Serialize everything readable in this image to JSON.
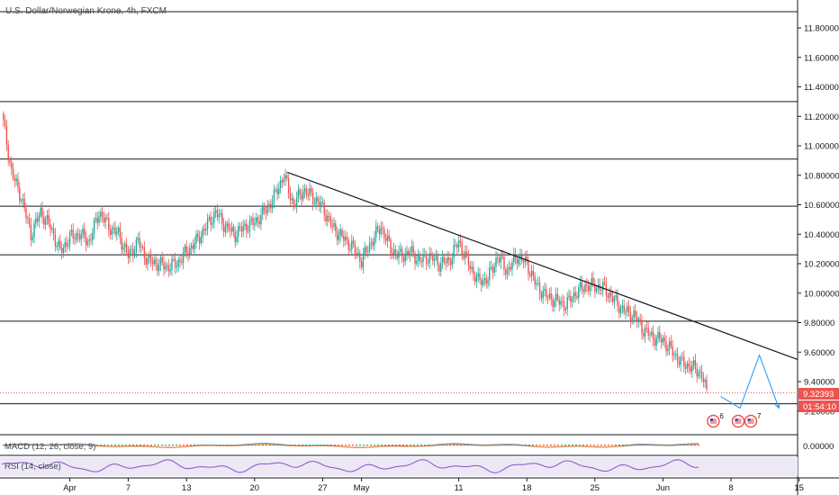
{
  "chart_data": {
    "type": "candlestick",
    "title": "U.S. Dollar/Norwegian Krone, 4h, FXCM",
    "price_axis": {
      "ylim": [
        9.2,
        11.9
      ],
      "ticks": [
        "11.80000",
        "11.60000",
        "11.40000",
        "11.20000",
        "11.00000",
        "10.80000",
        "10.60000",
        "10.40000",
        "10.20000",
        "10.00000",
        "9.80000",
        "9.60000",
        "9.40000",
        "9.20000"
      ]
    },
    "time_axis": {
      "labels": [
        "Apr",
        "7",
        "13",
        "20",
        "27",
        "May",
        "11",
        "18",
        "25",
        "Jun",
        "8",
        "15"
      ]
    },
    "horizontal_levels": [
      11.91,
      11.3,
      10.91,
      10.59,
      10.26,
      9.81,
      9.25
    ],
    "trendline": {
      "from": [
        "Apr 23",
        10.82
      ],
      "to": [
        "Jun 15",
        9.55
      ]
    },
    "last_price": {
      "value": "9.32393",
      "countdown": "01:54:10",
      "price": 9.324
    },
    "close_path": [
      [
        "Mar 25",
        11.22
      ],
      [
        "Mar 26",
        10.82
      ],
      [
        "Mar 27",
        10.65
      ],
      [
        "Mar 28",
        10.4
      ],
      [
        "Mar 29",
        10.55
      ],
      [
        "Mar 30",
        10.45
      ],
      [
        "Mar 31",
        10.28
      ],
      [
        "Apr 1",
        10.38
      ],
      [
        "Apr 2",
        10.4
      ],
      [
        "Apr 3",
        10.35
      ],
      [
        "Apr 4",
        10.55
      ],
      [
        "Apr 5",
        10.45
      ],
      [
        "Apr 6",
        10.4
      ],
      [
        "Apr 7",
        10.25
      ],
      [
        "Apr 8",
        10.35
      ],
      [
        "Apr 9",
        10.22
      ],
      [
        "Apr 10",
        10.2
      ],
      [
        "Apr 11",
        10.18
      ],
      [
        "Apr 12",
        10.2
      ],
      [
        "Apr 13",
        10.28
      ],
      [
        "Apr 14",
        10.35
      ],
      [
        "Apr 15",
        10.45
      ],
      [
        "Apr 16",
        10.55
      ],
      [
        "Apr 17",
        10.45
      ],
      [
        "Apr 18",
        10.4
      ],
      [
        "Apr 19",
        10.45
      ],
      [
        "Apr 20",
        10.48
      ],
      [
        "Apr 21",
        10.55
      ],
      [
        "Apr 22",
        10.65
      ],
      [
        "Apr 23",
        10.8
      ],
      [
        "Apr 24",
        10.6
      ],
      [
        "Apr 25",
        10.7
      ],
      [
        "Apr 26",
        10.65
      ],
      [
        "Apr 27",
        10.58
      ],
      [
        "Apr 28",
        10.45
      ],
      [
        "Apr 29",
        10.38
      ],
      [
        "Apr 30",
        10.32
      ],
      [
        "May 1",
        10.22
      ],
      [
        "May 2",
        10.35
      ],
      [
        "May 3",
        10.45
      ],
      [
        "May 4",
        10.3
      ],
      [
        "May 5",
        10.25
      ],
      [
        "May 6",
        10.28
      ],
      [
        "May 7",
        10.22
      ],
      [
        "May 8",
        10.25
      ],
      [
        "May 9",
        10.2
      ],
      [
        "May 10",
        10.22
      ],
      [
        "May 11",
        10.35
      ],
      [
        "May 12",
        10.2
      ],
      [
        "May 13",
        10.08
      ],
      [
        "May 14",
        10.1
      ],
      [
        "May 15",
        10.25
      ],
      [
        "May 16",
        10.15
      ],
      [
        "May 17",
        10.25
      ],
      [
        "May 18",
        10.2
      ],
      [
        "May 19",
        10.05
      ],
      [
        "May 20",
        9.98
      ],
      [
        "May 21",
        9.95
      ],
      [
        "May 22",
        9.92
      ],
      [
        "May 23",
        10.0
      ],
      [
        "May 24",
        10.05
      ],
      [
        "May 25",
        10.05
      ],
      [
        "May 26",
        10.03
      ],
      [
        "May 27",
        9.95
      ],
      [
        "May 28",
        9.88
      ],
      [
        "May 29",
        9.85
      ],
      [
        "May 30",
        9.75
      ],
      [
        "May 31",
        9.7
      ],
      [
        "Jun 1",
        9.68
      ],
      [
        "Jun 2",
        9.6
      ],
      [
        "Jun 3",
        9.52
      ],
      [
        "Jun 4",
        9.5
      ],
      [
        "Jun 5",
        9.45
      ],
      [
        "Jun 5 12:00",
        9.32
      ]
    ],
    "projection_path": [
      [
        "Jun 6",
        9.3
      ],
      [
        "Jun 8",
        9.22
      ],
      [
        "Jun 10",
        9.58
      ],
      [
        "Jun 12",
        9.22
      ]
    ],
    "events": [
      {
        "count": "6"
      },
      {
        "count": "7"
      }
    ],
    "macd": {
      "label": "MACD (12, 26, close, 9)",
      "value": "0.00000"
    },
    "rsi": {
      "label": "RSI (14, close)"
    },
    "colors": {
      "up": "#26a69a",
      "down": "#ef5350",
      "trendline": "#131722",
      "level": "#131722",
      "projection": "#2196f3",
      "rsi": "#7e57c2",
      "rsi_band": "#ede7f6",
      "macd_line": "#2196f3",
      "macd_signal": "#ff6d00"
    }
  }
}
